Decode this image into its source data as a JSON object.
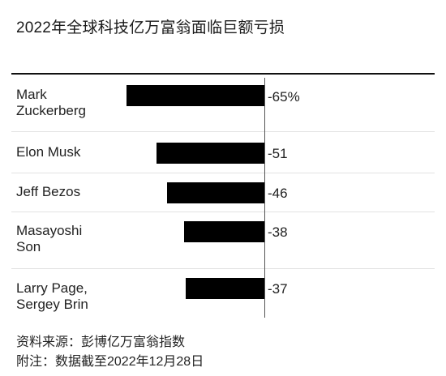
{
  "chart_data": {
    "type": "bar",
    "orientation": "horizontal",
    "title": "2022年全球科技亿万富翁面临巨额亏损",
    "categories": [
      "Mark Zuckerberg",
      "Elon Musk",
      "Jeff Bezos",
      "Masayoshi Son",
      "Larry Page, Sergey Brin"
    ],
    "category_lines": [
      [
        "Mark",
        "Zuckerberg"
      ],
      [
        "Elon Musk"
      ],
      [
        "Jeff Bezos"
      ],
      [
        "Masayoshi",
        "Son"
      ],
      [
        "Larry Page,",
        "Sergey Brin"
      ]
    ],
    "values": [
      -65,
      -51,
      -46,
      -38,
      -37
    ],
    "value_labels": [
      "-65%",
      "-51",
      "-46",
      "-38",
      "-37"
    ],
    "unit": "%",
    "bar_color": "#000000"
  },
  "footer": {
    "source": "资料来源：彭博亿万富翁指数",
    "note": "附注：数据截至2022年12月28日"
  }
}
